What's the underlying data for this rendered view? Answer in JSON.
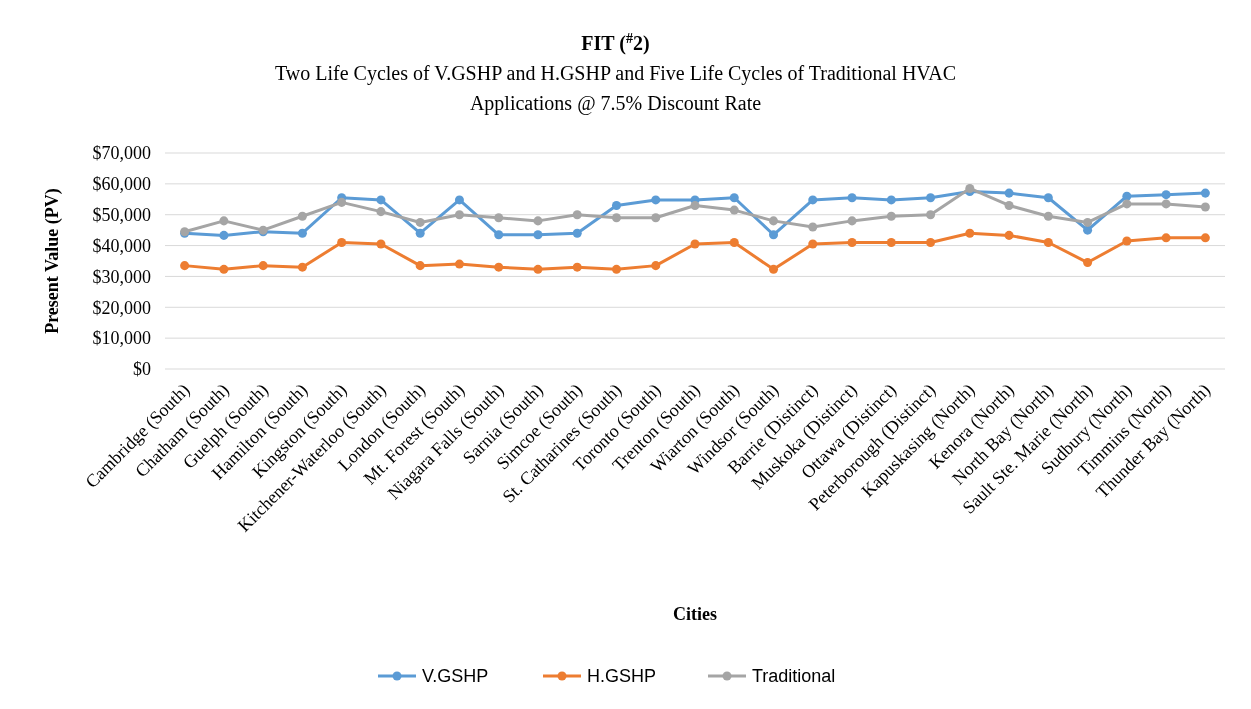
{
  "chart_data": {
    "type": "line",
    "title": "FIT ($^{#}$2)",
    "subtitle": "Two Life Cycles of V.GSHP and H.GSHP and Five Life Cycles of Traditional HVAC Applications @ 7.5% Discount Rate",
    "xlabel": "Cities",
    "ylabel": "Present Value (PV)",
    "categories": [
      "Cambridge (South)",
      "Chatham (South)",
      "Guelph (South)",
      "Hamilton (South)",
      "Kingston (South)",
      "Kitchener-Waterloo (South)",
      "London (South)",
      "Mt. Forest (South)",
      "Niagara Falls (South)",
      "Sarnia (South)",
      "Simcoe (South)",
      "St. Catharines (South)",
      "Toronto (South)",
      "Trenton (South)",
      "Wiarton (South)",
      "Windsor (South)",
      "Barrie (Distinct)",
      "Muskoka (Distinct)",
      "Ottawa (Distinct)",
      "Peterborough (Distinct)",
      "Kapuskasing (North)",
      "Kenora (North)",
      "North Bay (North)",
      "Sault Ste. Marie (North)",
      "Sudbury (North)",
      "Timmins (North)",
      "Thunder Bay (North)"
    ],
    "series": [
      {
        "name": "V.GSHP",
        "color": "#5b9bd5",
        "values": [
          44000,
          43300,
          44500,
          44000,
          55500,
          54800,
          44000,
          54800,
          43500,
          43500,
          44000,
          53000,
          54800,
          54800,
          55500,
          43500,
          54800,
          55500,
          54800,
          55500,
          57500,
          57000,
          55500,
          45000,
          56000,
          56500,
          57000
        ]
      },
      {
        "name": "H.GSHP",
        "color": "#ed7d31",
        "values": [
          33500,
          32300,
          33500,
          33000,
          41000,
          40500,
          33500,
          34000,
          33000,
          32300,
          33000,
          32300,
          33500,
          40500,
          41000,
          32300,
          40500,
          41000,
          41000,
          41000,
          44000,
          43300,
          41000,
          34500,
          41500,
          42500,
          42500
        ]
      },
      {
        "name": "Traditional",
        "color": "#a5a5a5",
        "values": [
          44500,
          48000,
          45000,
          49500,
          54000,
          51000,
          47500,
          50000,
          49000,
          48000,
          50000,
          49000,
          49000,
          53000,
          51500,
          48000,
          46000,
          48000,
          49500,
          50000,
          58500,
          53000,
          49500,
          47500,
          53500,
          53500,
          52500
        ]
      }
    ],
    "ylim": [
      0,
      70000
    ],
    "yticks": [
      {
        "value": 0,
        "label": "$0"
      },
      {
        "value": 10000,
        "label": "$10,000"
      },
      {
        "value": 20000,
        "label": "$20,000"
      },
      {
        "value": 30000,
        "label": "$30,000"
      },
      {
        "value": 40000,
        "label": "$40,000"
      },
      {
        "value": 50000,
        "label": "$50,000"
      },
      {
        "value": 60000,
        "label": "$60,000"
      },
      {
        "value": 70000,
        "label": "$70,000"
      }
    ],
    "grid": "y",
    "legend": "bottom",
    "marker": "circle",
    "line_style": "solid"
  }
}
